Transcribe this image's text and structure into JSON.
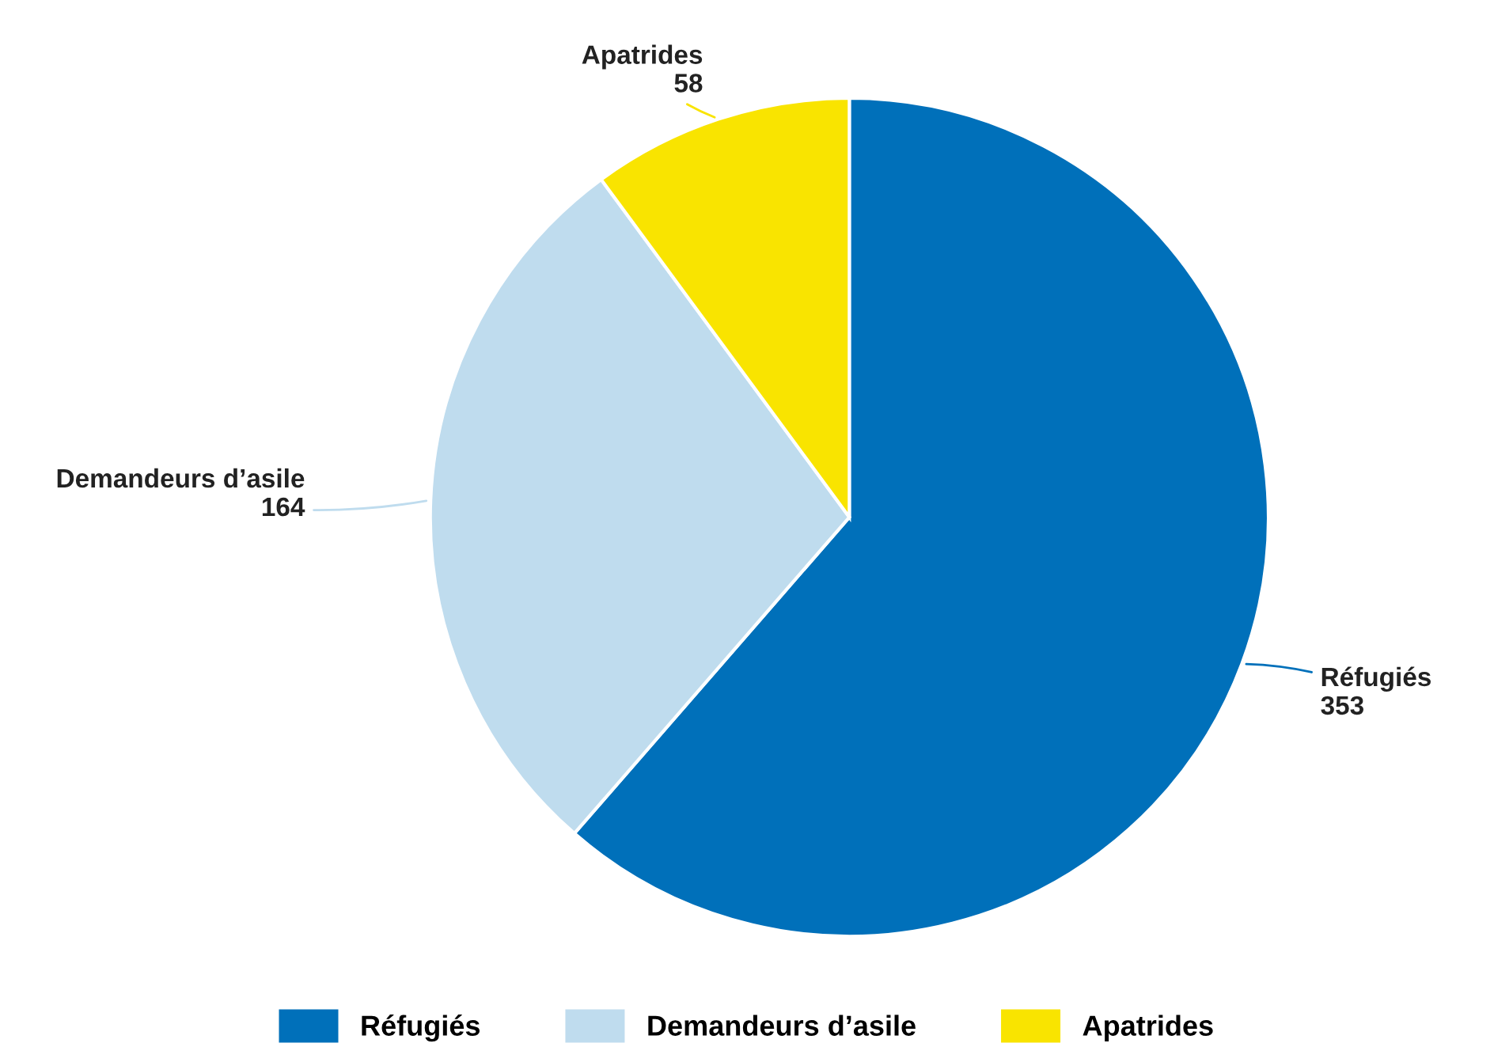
{
  "chart_data": {
    "type": "pie",
    "categories": [
      "Réfugiés",
      "Demandeurs d’asile",
      "Apatrides"
    ],
    "values": [
      353,
      164,
      58
    ],
    "colors": [
      "#0070ba",
      "#bfdcee",
      "#f9e400"
    ],
    "data_labels": true,
    "legend": "bottom"
  }
}
